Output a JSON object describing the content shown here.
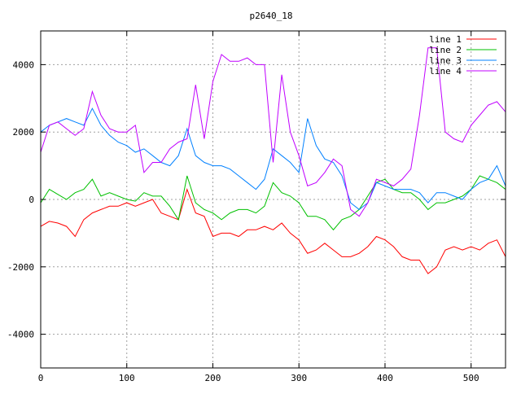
{
  "chart_data": {
    "type": "line",
    "title": "p2640_18",
    "xlabel": "",
    "ylabel": "",
    "xlim": [
      0,
      540
    ],
    "ylim": [
      -5000,
      5000
    ],
    "xticks": [
      0,
      100,
      200,
      300,
      400,
      500
    ],
    "yticks": [
      -4000,
      -2000,
      0,
      2000,
      4000
    ],
    "grid": true,
    "legend_position": "top-right",
    "x": [
      0,
      10,
      20,
      30,
      40,
      50,
      60,
      70,
      80,
      90,
      100,
      110,
      120,
      130,
      140,
      150,
      160,
      170,
      180,
      190,
      200,
      210,
      220,
      230,
      240,
      250,
      260,
      270,
      280,
      290,
      300,
      310,
      320,
      330,
      340,
      350,
      360,
      370,
      380,
      390,
      400,
      410,
      420,
      430,
      440,
      450,
      460,
      470,
      480,
      490,
      500,
      510,
      520,
      530,
      540
    ],
    "series": [
      {
        "name": "line 1",
        "color": "#ff0000",
        "values": [
          -800,
          -650,
          -700,
          -800,
          -1100,
          -600,
          -400,
          -300,
          -200,
          -200,
          -100,
          -200,
          -100,
          0,
          -400,
          -500,
          -600,
          300,
          -400,
          -500,
          -1100,
          -1000,
          -1000,
          -1100,
          -900,
          -900,
          -800,
          -900,
          -700,
          -1000,
          -1200,
          -1600,
          -1500,
          -1300,
          -1500,
          -1700,
          -1700,
          -1600,
          -1400,
          -1100,
          -1200,
          -1400,
          -1700,
          -1800,
          -1800,
          -2200,
          -2000,
          -1500,
          -1400,
          -1500,
          -1400,
          -1500,
          -1300,
          -1200,
          -1700
        ]
      },
      {
        "name": "line 2",
        "color": "#00c000",
        "values": [
          -100,
          300,
          150,
          0,
          200,
          300,
          600,
          100,
          200,
          100,
          0,
          -50,
          200,
          100,
          100,
          -200,
          -600,
          700,
          -100,
          -300,
          -400,
          -600,
          -400,
          -300,
          -300,
          -400,
          -200,
          500,
          200,
          100,
          -100,
          -500,
          -500,
          -600,
          -900,
          -600,
          -500,
          -300,
          100,
          500,
          600,
          300,
          200,
          200,
          0,
          -300,
          -100,
          -100,
          0,
          100,
          300,
          700,
          600,
          500,
          300
        ]
      },
      {
        "name": "line 3",
        "color": "#0080ff",
        "values": [
          2000,
          2200,
          2300,
          2400,
          2300,
          2200,
          2700,
          2200,
          1900,
          1700,
          1600,
          1400,
          1500,
          1300,
          1100,
          1000,
          1300,
          2100,
          1300,
          1100,
          1000,
          1000,
          900,
          700,
          500,
          300,
          600,
          1500,
          1300,
          1100,
          800,
          2400,
          1600,
          1200,
          1100,
          700,
          -100,
          -300,
          -100,
          500,
          400,
          300,
          300,
          300,
          200,
          -100,
          200,
          200,
          100,
          0,
          300,
          500,
          600,
          1000,
          400
        ]
      },
      {
        "name": "line 4",
        "color": "#c000ff",
        "values": [
          1400,
          2200,
          2300,
          2100,
          1900,
          2100,
          3200,
          2500,
          2100,
          2000,
          2000,
          2200,
          800,
          1100,
          1100,
          1500,
          1700,
          1800,
          3400,
          1800,
          3500,
          4300,
          4100,
          4100,
          4200,
          4000,
          4000,
          1100,
          3700,
          2000,
          1300,
          400,
          500,
          800,
          1200,
          1000,
          -300,
          -500,
          -100,
          600,
          500,
          400,
          600,
          900,
          2500,
          4500,
          4500,
          2000,
          1800,
          1700,
          2200,
          2500,
          2800,
          2900,
          2600
        ]
      }
    ]
  }
}
